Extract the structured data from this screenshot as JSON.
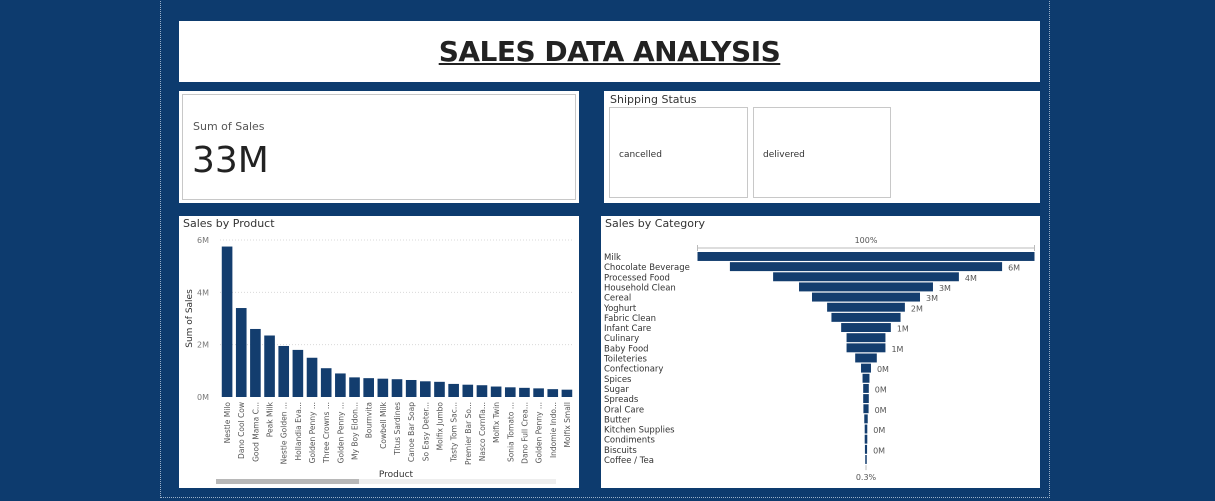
{
  "report": {
    "title": "SALES DATA ANALYSIS"
  },
  "kpi": {
    "label": "Sum of Sales",
    "value": "33M"
  },
  "shipping": {
    "title": "Shipping Status",
    "options": [
      "cancelled",
      "delivered"
    ]
  },
  "colors": {
    "background": "#0d3b6e",
    "bar": "#133d6e",
    "panel": "#ffffff"
  },
  "chart_data": [
    {
      "type": "bar",
      "title": "Sales by Product",
      "xlabel": "Product",
      "ylabel": "Sum of Sales",
      "ylim": [
        0,
        6000000
      ],
      "yticks": [
        {
          "value": 0,
          "label": "0M"
        },
        {
          "value": 2000000,
          "label": "2M"
        },
        {
          "value": 4000000,
          "label": "4M"
        },
        {
          "value": 6000000,
          "label": "6M"
        }
      ],
      "grid": true,
      "categories": [
        "Nestle Milo",
        "Dano Cool Cow",
        "Good Mama C...",
        "Peak Milk",
        "Nestle Golden ...",
        "Hollandia Eva...",
        "Golden Penny ...",
        "Three Crowns ...",
        "Golden Penny ...",
        "My Boy Eldon...",
        "Bournvita",
        "Cowbell Milk",
        "Titus Sardines",
        "Canoe Bar Soap",
        "So Easy Deter...",
        "Molfix Jumbo",
        "Tasty Tom Sac...",
        "Premier Bar So...",
        "Nasco Cornfla...",
        "Molfix Twin",
        "Sonia Tomato ...",
        "Dano Full Crea...",
        "Golden Penny ...",
        "Indomie Indo...",
        "Molfix Small"
      ],
      "values": [
        5750000,
        3400000,
        2600000,
        2350000,
        1950000,
        1800000,
        1500000,
        1100000,
        900000,
        750000,
        720000,
        700000,
        680000,
        650000,
        600000,
        580000,
        500000,
        470000,
        450000,
        400000,
        370000,
        350000,
        330000,
        300000,
        280000
      ]
    },
    {
      "type": "bar",
      "orientation": "funnel",
      "title": "Sales by Category",
      "top_label": "100%",
      "bottom_label": "0.3%",
      "categories": [
        "Milk",
        "Chocolate Beverage",
        "Processed Food",
        "Household Clean",
        "Cereal",
        "Yoghurt",
        "Fabric Clean",
        "Infant Care",
        "Culinary",
        "Baby Food",
        "Toileteries",
        "Confectionary",
        "Spices",
        "Sugar",
        "Spreads",
        "Oral Care",
        "Butter",
        "Kitchen Supplies",
        "Condiments",
        "Biscuits",
        "Coffee / Tea"
      ],
      "values": [
        7800000,
        6300000,
        4300000,
        3100000,
        2500000,
        1800000,
        1600000,
        1150000,
        900000,
        900000,
        500000,
        230000,
        160000,
        130000,
        130000,
        120000,
        80000,
        60000,
        60000,
        50000,
        25000
      ],
      "data_labels": [
        "",
        "6M",
        "4M",
        "3M",
        "3M",
        "2M",
        "",
        "1M",
        "",
        "1M",
        "",
        "0M",
        "",
        "0M",
        "",
        "0M",
        "",
        "0M",
        "",
        "0M",
        ""
      ]
    }
  ]
}
